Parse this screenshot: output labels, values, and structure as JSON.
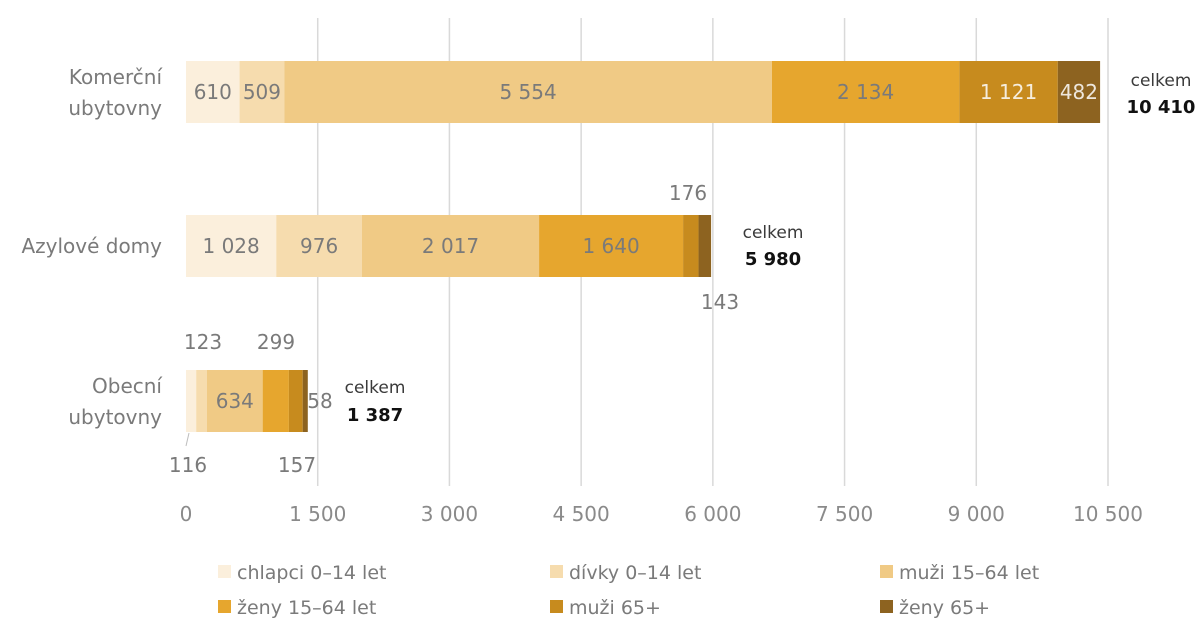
{
  "chart_data": {
    "type": "bar",
    "orientation": "horizontal",
    "stacked": true,
    "categories": [
      [
        "Komerční",
        "ubytovny"
      ],
      [
        "Azylové domy"
      ],
      [
        "Obecní",
        "ubytovny"
      ]
    ],
    "series": [
      {
        "name": "chlapci 0–14 let",
        "color": "#fbefdc",
        "values": [
          610,
          1028,
          116
        ],
        "labels": [
          "610",
          "1 028",
          "116"
        ]
      },
      {
        "name": "dívky 0–14 let",
        "color": "#f6dcae",
        "values": [
          509,
          976,
          123
        ],
        "labels": [
          "509",
          "976",
          "123"
        ]
      },
      {
        "name": "muži 15–64 let",
        "color": "#f0ca85",
        "values": [
          5554,
          2017,
          634
        ],
        "labels": [
          "5 554",
          "2 017",
          "634"
        ]
      },
      {
        "name": "ženy 15–64 let",
        "color": "#e6a62e",
        "values": [
          2134,
          1640,
          299
        ],
        "labels": [
          "2 134",
          "1 640",
          "299"
        ]
      },
      {
        "name": "muži 65+",
        "color": "#c78b1e",
        "values": [
          1121,
          176,
          157
        ],
        "labels": [
          "1 121",
          "176",
          "157"
        ]
      },
      {
        "name": "ženy 65+",
        "color": "#8d6320",
        "values": [
          482,
          143,
          58
        ],
        "labels": [
          "482",
          "143",
          "58"
        ]
      }
    ],
    "totals": {
      "word": "celkem",
      "values": [
        "10 410",
        "5 980",
        "1 387"
      ]
    },
    "x_ticks": [
      {
        "value": 0,
        "label": "0"
      },
      {
        "value": 1500,
        "label": "1 500"
      },
      {
        "value": 3000,
        "label": "3 000"
      },
      {
        "value": 4500,
        "label": "4 500"
      },
      {
        "value": 6000,
        "label": "6 000"
      },
      {
        "value": 7500,
        "label": "7 500"
      },
      {
        "value": 9000,
        "label": "9 000"
      },
      {
        "value": 10500,
        "label": "10 500"
      }
    ],
    "xlim": [
      0,
      10500
    ],
    "grid": true,
    "legend_position": "bottom"
  }
}
